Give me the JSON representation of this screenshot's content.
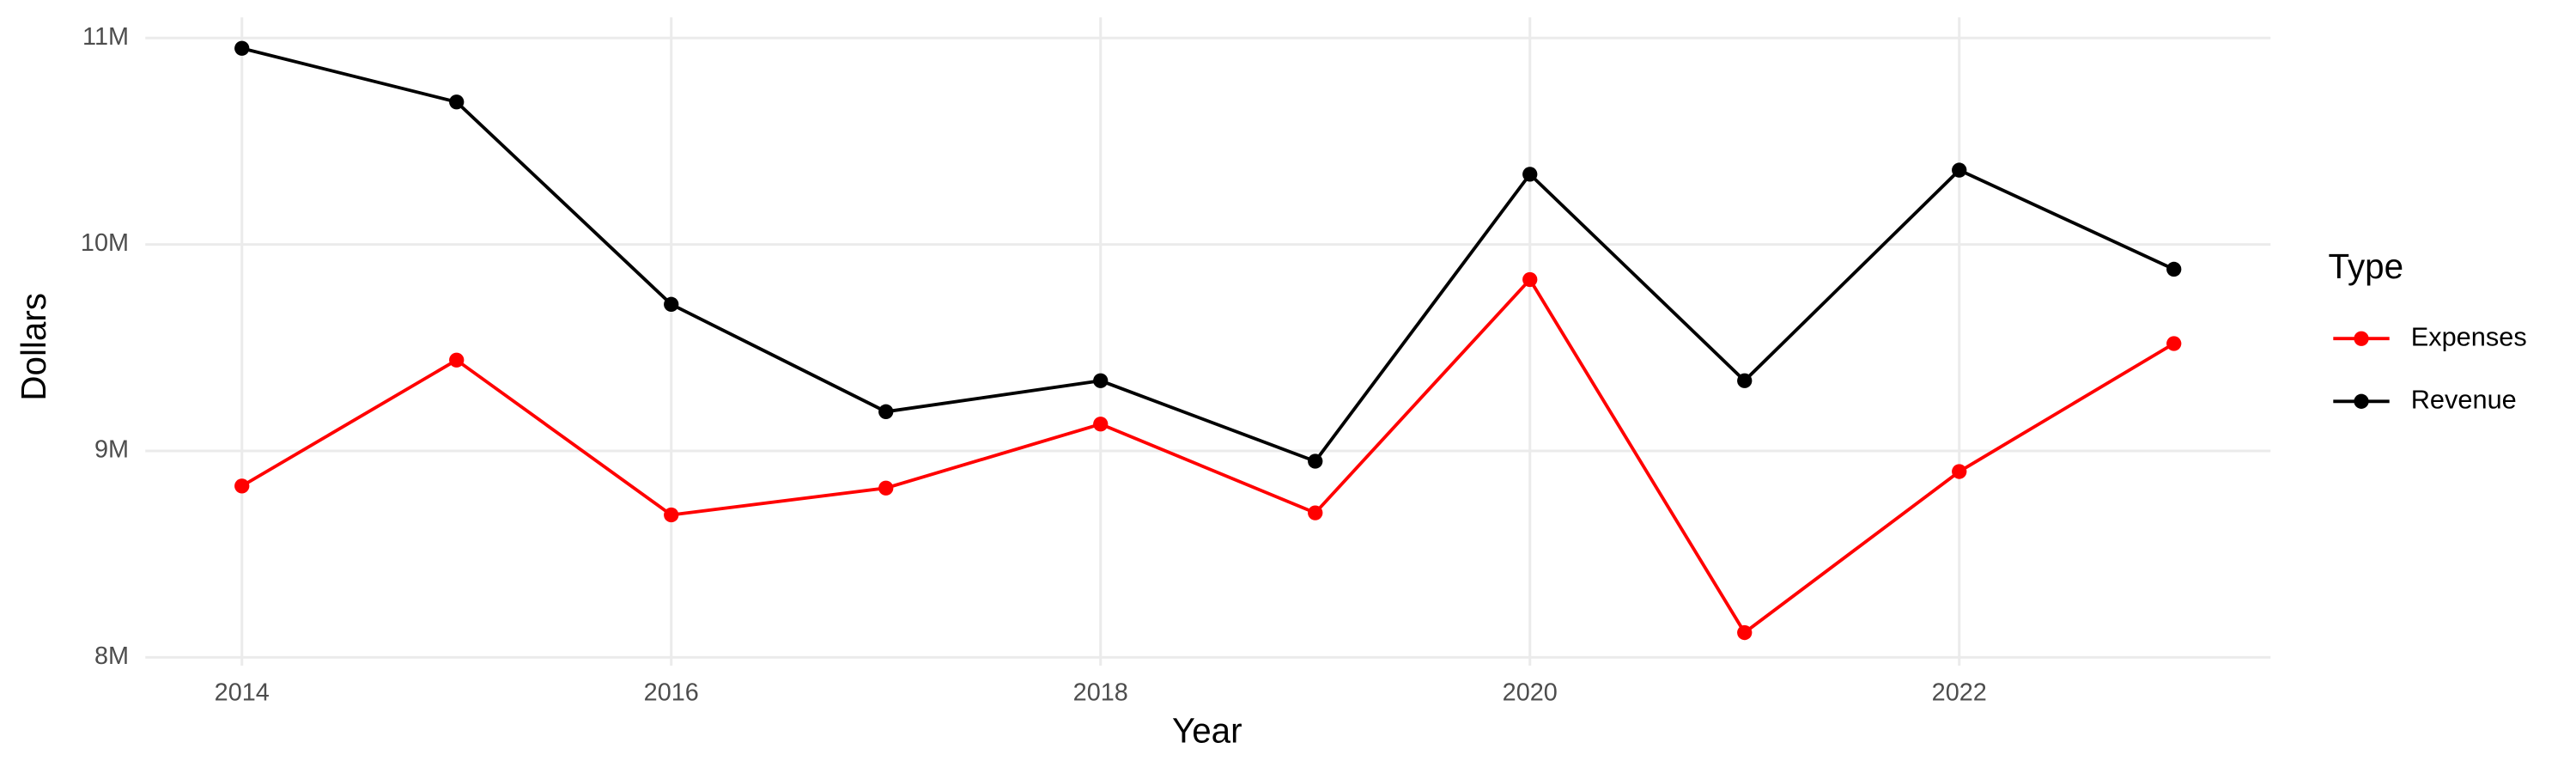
{
  "chart_data": {
    "type": "line",
    "x_label": "Year",
    "y_label": "Dollars",
    "legend_title": "Type",
    "legend_position": "right",
    "grid": true,
    "x": [
      2014,
      2015,
      2016,
      2017,
      2018,
      2019,
      2020,
      2021,
      2022,
      2023
    ],
    "series": [
      {
        "name": "Expenses",
        "color": "#ff0000",
        "values": [
          8830000,
          9440000,
          8690000,
          8820000,
          9130000,
          8700000,
          9830000,
          8120000,
          8900000,
          9520000
        ]
      },
      {
        "name": "Revenue",
        "color": "#000000",
        "values": [
          10950000,
          10690000,
          9710000,
          9190000,
          9340000,
          8950000,
          10340000,
          9340000,
          10360000,
          9880000
        ]
      }
    ],
    "xlim": [
      2013.55,
      2023.45
    ],
    "xticks": [
      2014,
      2016,
      2018,
      2020,
      2022
    ],
    "ylim": [
      7960000,
      11100000
    ],
    "yticks": [
      {
        "value": 8000000,
        "label": "8M"
      },
      {
        "value": 9000000,
        "label": "9M"
      },
      {
        "value": 10000000,
        "label": "10M"
      },
      {
        "value": 11000000,
        "label": "11M"
      }
    ]
  }
}
